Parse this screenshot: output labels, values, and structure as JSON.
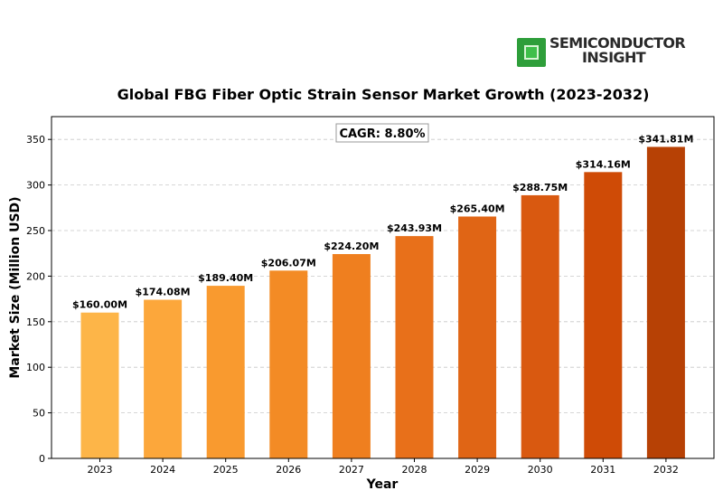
{
  "brand": {
    "line1": "SEMICONDUCTOR",
    "line2": "INSIGHT"
  },
  "chart_data": {
    "type": "bar",
    "title": "Global FBG Fiber Optic Strain Sensor Market Growth (2023-2032)",
    "xlabel": "Year",
    "ylabel": "Market Size (Million USD)",
    "categories": [
      "2023",
      "2024",
      "2025",
      "2026",
      "2027",
      "2028",
      "2029",
      "2030",
      "2031",
      "2032"
    ],
    "values": [
      160.0,
      174.08,
      189.4,
      206.07,
      224.2,
      243.93,
      265.4,
      288.75,
      314.16,
      341.81
    ],
    "value_labels": [
      "$160.00M",
      "$174.08M",
      "$189.40M",
      "$206.07M",
      "$224.20M",
      "$243.93M",
      "$265.40M",
      "$288.75M",
      "$314.16M",
      "$341.81M"
    ],
    "ylim": [
      0,
      375
    ],
    "yticks": [
      0,
      50,
      100,
      150,
      200,
      250,
      300,
      350
    ],
    "annotation": "CAGR: 8.80%",
    "grid": "horizontal dashed",
    "colors": [
      "#fdb548",
      "#fca73b",
      "#f99a2f",
      "#f38b25",
      "#ef7f1f",
      "#e8701a",
      "#e06515",
      "#d95910",
      "#cf4b06",
      "#b74105"
    ]
  }
}
